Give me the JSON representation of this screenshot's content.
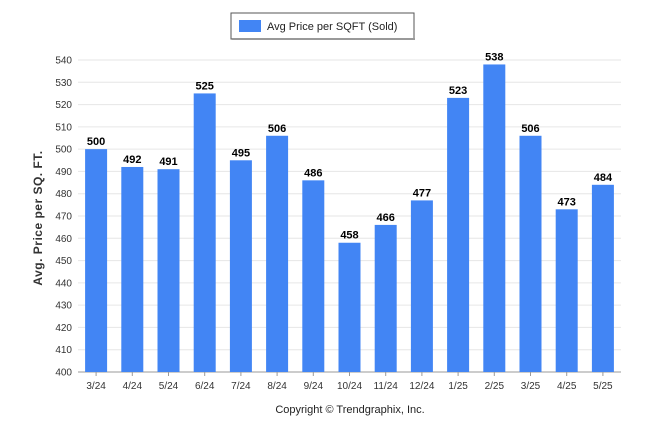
{
  "chart_data": {
    "type": "bar",
    "categories": [
      "3/24",
      "4/24",
      "5/24",
      "6/24",
      "7/24",
      "8/24",
      "9/24",
      "10/24",
      "11/24",
      "12/24",
      "1/25",
      "2/25",
      "3/25",
      "4/25",
      "5/25"
    ],
    "series": [
      {
        "name": "Avg Price per SQFT (Sold)",
        "values": [
          500,
          492,
          491,
          525,
          495,
          506,
          486,
          458,
          466,
          477,
          523,
          538,
          506,
          473,
          484
        ],
        "color": "#4285f4"
      }
    ],
    "ylabel": "Avg. Price per SQ. FT.",
    "xlabel": "",
    "ylim": [
      400,
      540
    ],
    "yticks": [
      400,
      410,
      420,
      430,
      440,
      450,
      460,
      470,
      480,
      490,
      500,
      510,
      520,
      530,
      540
    ],
    "grid": true,
    "legend_position": "top-center",
    "data_labels": true
  },
  "footer": {
    "copyright": "Copyright © Trendgraphix, Inc."
  }
}
